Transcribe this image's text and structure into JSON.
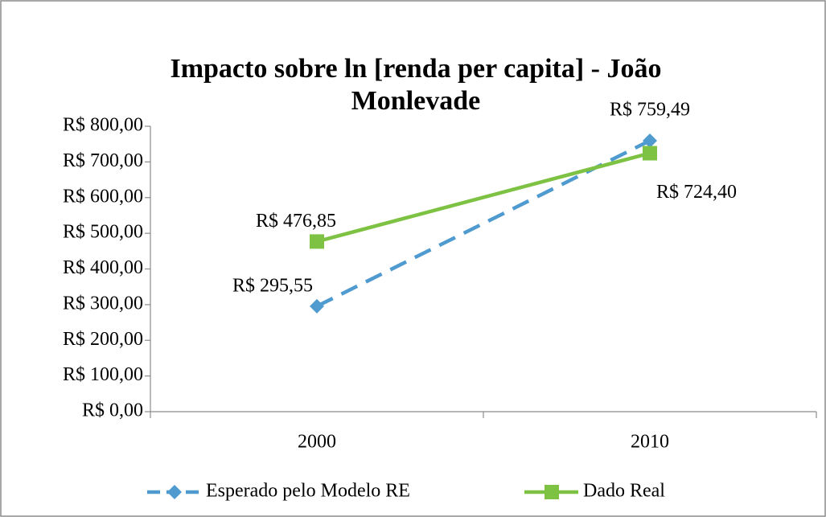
{
  "chart_data": {
    "type": "line",
    "title": "Impacto sobre ln [renda per capita] - João Monlevade",
    "categories": [
      "2000",
      "2010"
    ],
    "series": [
      {
        "name": "Esperado pelo Modelo RE",
        "color": "#4f9bd0",
        "dash": true,
        "marker": "diamond",
        "values": [
          295.55,
          759.49
        ],
        "value_labels": [
          "R$ 295,55",
          "R$ 759,49"
        ]
      },
      {
        "name": "Dado Real",
        "color": "#7dc242",
        "dash": false,
        "marker": "square",
        "values": [
          476.85,
          724.4
        ],
        "value_labels": [
          "R$ 476,85",
          "R$ 724,40"
        ]
      }
    ],
    "ylim": [
      0,
      800
    ],
    "yticks": [
      {
        "value": 0,
        "label": "R$ 0,00"
      },
      {
        "value": 100,
        "label": "R$ 100,00"
      },
      {
        "value": 200,
        "label": "R$ 200,00"
      },
      {
        "value": 300,
        "label": "R$ 300,00"
      },
      {
        "value": 400,
        "label": "R$ 400,00"
      },
      {
        "value": 500,
        "label": "R$ 500,00"
      },
      {
        "value": 600,
        "label": "R$ 600,00"
      },
      {
        "value": 700,
        "label": "R$ 700,00"
      },
      {
        "value": 800,
        "label": "R$ 800,00"
      }
    ],
    "legend": "bottom"
  }
}
